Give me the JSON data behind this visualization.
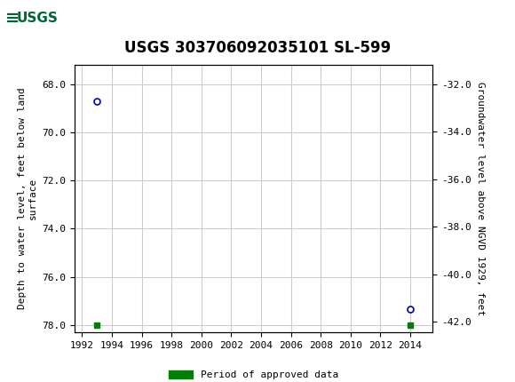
{
  "title": "USGS 303706092035101 SL-599",
  "ylabel_left": "Depth to water level, feet below land\nsurface",
  "ylabel_right": "Groundwater level above NGVD 1929, feet",
  "data_points": [
    {
      "x": 1993.0,
      "y_left": 68.7
    },
    {
      "x": 2014.0,
      "y_left": 77.35
    }
  ],
  "green_squares": [
    {
      "x": 1993.0,
      "y_left": 78.0
    },
    {
      "x": 2014.0,
      "y_left": 78.0
    }
  ],
  "xlim": [
    1991.5,
    2015.5
  ],
  "xticks": [
    1992,
    1994,
    1996,
    1998,
    2000,
    2002,
    2004,
    2006,
    2008,
    2010,
    2012,
    2014
  ],
  "ylim_left": [
    78.3,
    67.2
  ],
  "ylim_right": [
    -42.45,
    -31.2
  ],
  "yticks_left": [
    68.0,
    70.0,
    72.0,
    74.0,
    76.0,
    78.0
  ],
  "yticks_right": [
    -32.0,
    -34.0,
    -36.0,
    -38.0,
    -40.0,
    -42.0
  ],
  "marker_color": "#0000bb",
  "marker_size": 5,
  "green_color": "#008000",
  "grid_color": "#cccccc",
  "header_color": "#006633",
  "plot_bg": "#ffffff",
  "fig_bg": "#ffffff",
  "legend_label": "Period of approved data",
  "title_fontsize": 12,
  "axis_label_fontsize": 8,
  "tick_fontsize": 8
}
